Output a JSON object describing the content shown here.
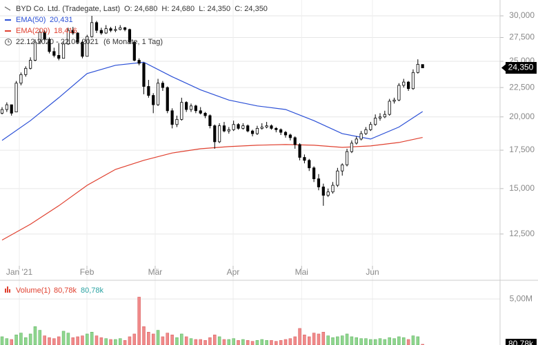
{
  "chart_data": [
    {
      "type": "candlestick",
      "title": "BYD Co. Ltd. (Tradegate, Last)",
      "info": "O: 24,680  H: 24,680  L: 24,350  C: 24,350",
      "range_text": "22.12.2020 - 22.06.2021",
      "range_note": "(6 Monate, 1 Tag)",
      "last_label": "24,350",
      "log_scale": true,
      "grid": true,
      "up_color": "#ffffff",
      "down_color": "#000000",
      "xlim": [
        -0.44,
        105.4
      ],
      "xticks": [
        {
          "value": 3.65,
          "label": "Jan '21"
        },
        {
          "value": 17.96,
          "label": "Feb"
        },
        {
          "value": 32.4,
          "label": "Mär"
        },
        {
          "value": 48.9,
          "label": "Apr"
        },
        {
          "value": 63.4,
          "label": "Mai"
        },
        {
          "value": 78.4,
          "label": "Jun"
        }
      ],
      "ylim": [
        10440,
        31970
      ],
      "yticks": [
        {
          "value": 12500,
          "label": "12,500"
        },
        {
          "value": 15000,
          "label": "15,000"
        },
        {
          "value": 17500,
          "label": "17,500"
        },
        {
          "value": 20000,
          "label": "20,000"
        },
        {
          "value": 22500,
          "label": "22,500"
        },
        {
          "value": 25000,
          "label": "25,000"
        },
        {
          "value": 27500,
          "label": "27,500"
        },
        {
          "value": 30000,
          "label": "30,000"
        }
      ],
      "ohlc": [
        [
          20300,
          20800,
          20200,
          20600
        ],
        [
          20600,
          21200,
          20400,
          21000
        ],
        [
          21000,
          21000,
          20100,
          20300
        ],
        [
          20400,
          23100,
          20400,
          22900
        ],
        [
          22900,
          23900,
          22700,
          23700
        ],
        [
          23700,
          24500,
          23500,
          24300
        ],
        [
          24300,
          25400,
          24200,
          25100
        ],
        [
          25100,
          27300,
          25000,
          27000
        ],
        [
          27000,
          28500,
          26800,
          28100
        ],
        [
          28100,
          28300,
          27100,
          27300
        ],
        [
          27300,
          27500,
          25800,
          26000
        ],
        [
          26000,
          26400,
          25400,
          25600
        ],
        [
          25600,
          26900,
          25100,
          25300
        ],
        [
          25300,
          27100,
          25300,
          26800
        ],
        [
          26800,
          28600,
          26700,
          28300
        ],
        [
          28300,
          28700,
          27800,
          28000
        ],
        [
          28000,
          28100,
          26800,
          27000
        ],
        [
          27000,
          27200,
          25300,
          25500
        ],
        [
          25500,
          27800,
          25500,
          27600
        ],
        [
          27600,
          30000,
          27500,
          29200
        ],
        [
          29200,
          29400,
          28000,
          28300
        ],
        [
          28300,
          28600,
          27800,
          28000
        ],
        [
          28000,
          28900,
          27900,
          28500
        ],
        [
          28500,
          28700,
          28100,
          28300
        ],
        [
          28300,
          28800,
          28100,
          28400
        ],
        [
          28400,
          28900,
          28300,
          28600
        ],
        [
          28600,
          28700,
          28200,
          28400
        ],
        [
          28400,
          28500,
          26800,
          27000
        ],
        [
          27000,
          27100,
          25000,
          25100
        ],
        [
          25100,
          25300,
          24600,
          24800
        ],
        [
          24800,
          24900,
          21900,
          22600
        ],
        [
          22600,
          23200,
          21600,
          21800
        ],
        [
          21800,
          22000,
          20300,
          21000
        ],
        [
          21000,
          23300,
          20900,
          22900
        ],
        [
          22900,
          23100,
          22200,
          22500
        ],
        [
          22500,
          22600,
          20300,
          20500
        ],
        [
          20500,
          20700,
          19100,
          19400
        ],
        [
          19400,
          20100,
          19200,
          19800
        ],
        [
          19800,
          21600,
          19700,
          21200
        ],
        [
          21200,
          21300,
          20400,
          20600
        ],
        [
          20600,
          21100,
          20400,
          20900
        ],
        [
          20900,
          21000,
          20300,
          20500
        ],
        [
          20500,
          20800,
          20200,
          20300
        ],
        [
          20300,
          20400,
          19900,
          20100
        ],
        [
          20100,
          20200,
          19100,
          19300
        ],
        [
          19300,
          19400,
          17600,
          18100
        ],
        [
          18100,
          19500,
          18000,
          19300
        ],
        [
          19300,
          19600,
          18800,
          18900
        ],
        [
          18900,
          19200,
          18700,
          19000
        ],
        [
          19000,
          19700,
          18900,
          19400
        ],
        [
          19400,
          19500,
          19000,
          19100
        ],
        [
          19100,
          19500,
          19000,
          19300
        ],
        [
          19300,
          19400,
          18800,
          18900
        ],
        [
          18900,
          19000,
          18500,
          18700
        ],
        [
          18700,
          19300,
          18600,
          19100
        ],
        [
          19100,
          19500,
          19000,
          19200
        ],
        [
          19200,
          19600,
          19100,
          19300
        ],
        [
          19300,
          19400,
          19000,
          19100
        ],
        [
          19100,
          19200,
          18800,
          19000
        ],
        [
          19000,
          19100,
          18600,
          18800
        ],
        [
          18800,
          18900,
          18400,
          18600
        ],
        [
          18600,
          18700,
          18200,
          18400
        ],
        [
          18400,
          18500,
          17600,
          17900
        ],
        [
          17900,
          18000,
          16800,
          17000
        ],
        [
          17000,
          17200,
          16600,
          16800
        ],
        [
          16800,
          16900,
          16100,
          16300
        ],
        [
          16300,
          16400,
          15400,
          15600
        ],
        [
          15600,
          15900,
          14900,
          15100
        ],
        [
          15100,
          15300,
          14000,
          14600
        ],
        [
          14600,
          15000,
          14500,
          14800
        ],
        [
          14800,
          15400,
          14700,
          15200
        ],
        [
          15200,
          16300,
          15100,
          16100
        ],
        [
          16100,
          16600,
          15800,
          16500
        ],
        [
          16500,
          17600,
          16400,
          17400
        ],
        [
          17400,
          18200,
          17300,
          18000
        ],
        [
          18000,
          18500,
          17900,
          18300
        ],
        [
          18300,
          18900,
          18200,
          18700
        ],
        [
          18700,
          19200,
          18600,
          19000
        ],
        [
          19000,
          19600,
          18900,
          19400
        ],
        [
          19400,
          20200,
          19300,
          19900
        ],
        [
          19900,
          20300,
          19700,
          20000
        ],
        [
          20000,
          20500,
          19900,
          20200
        ],
        [
          20200,
          21500,
          20100,
          21300
        ],
        [
          21300,
          21600,
          21100,
          21400
        ],
        [
          21400,
          22900,
          21300,
          22700
        ],
        [
          22700,
          23300,
          22500,
          23000
        ],
        [
          23000,
          23100,
          22200,
          22400
        ],
        [
          22400,
          24200,
          22300,
          23900
        ],
        [
          23900,
          25200,
          23800,
          24700
        ],
        [
          24680,
          24680,
          24350,
          24350
        ]
      ],
      "series": [
        {
          "name": "EMA(50)",
          "value_label": "20,431",
          "color": "#2a4fd6",
          "x": [
            0,
            6,
            12,
            18,
            24,
            30,
            36,
            42,
            48,
            54,
            60,
            66,
            72,
            78,
            84,
            89
          ],
          "values": [
            18200,
            19700,
            21600,
            23800,
            24600,
            24900,
            23500,
            22300,
            21400,
            20900,
            20600,
            19700,
            18700,
            18300,
            19200,
            20431
          ]
        },
        {
          "name": "EMA(200)",
          "value_label": "18,416",
          "color": "#e0402f",
          "x": [
            0,
            6,
            12,
            18,
            24,
            30,
            36,
            42,
            48,
            54,
            60,
            66,
            72,
            78,
            84,
            89
          ],
          "values": [
            12200,
            13000,
            14000,
            15200,
            16200,
            16800,
            17300,
            17600,
            17750,
            17850,
            17900,
            17850,
            17700,
            17800,
            18050,
            18416
          ]
        }
      ]
    },
    {
      "type": "bar",
      "name": "Volume(1)",
      "value_label": "80,78k",
      "value_label_2": "80,78k",
      "last_label": "80,78k",
      "up_color": "#8fd68f",
      "down_color": "#f08a8a",
      "ylim": [
        0,
        6.8
      ],
      "yticks": [
        {
          "value": 5,
          "label": "5,00M"
        }
      ],
      "values": [
        0.9,
        0.7,
        0.6,
        1.1,
        1.3,
        0.8,
        1.2,
        2.0,
        1.6,
        1.0,
        0.8,
        0.7,
        0.9,
        1.5,
        1.3,
        0.8,
        0.9,
        1.0,
        1.2,
        1.4,
        1.0,
        0.8,
        0.7,
        0.6,
        0.6,
        0.7,
        0.5,
        0.9,
        1.2,
        5.2,
        2.0,
        1.4,
        1.2,
        1.6,
        0.9,
        1.3,
        1.1,
        0.8,
        1.2,
        0.9,
        0.7,
        0.6,
        0.6,
        0.5,
        0.8,
        1.1,
        0.9,
        0.6,
        0.6,
        0.7,
        0.5,
        0.6,
        0.5,
        0.4,
        0.5,
        0.6,
        0.5,
        0.5,
        0.4,
        0.5,
        0.6,
        0.7,
        0.9,
        1.8,
        1.1,
        0.9,
        1.3,
        1.2,
        1.4,
        1.0,
        0.8,
        0.9,
        1.0,
        1.2,
        0.9,
        0.8,
        0.7,
        0.7,
        0.6,
        0.6,
        0.7,
        0.6,
        0.8,
        0.7,
        0.9,
        0.8,
        0.6,
        1.0,
        0.9,
        0.08078
      ]
    }
  ]
}
